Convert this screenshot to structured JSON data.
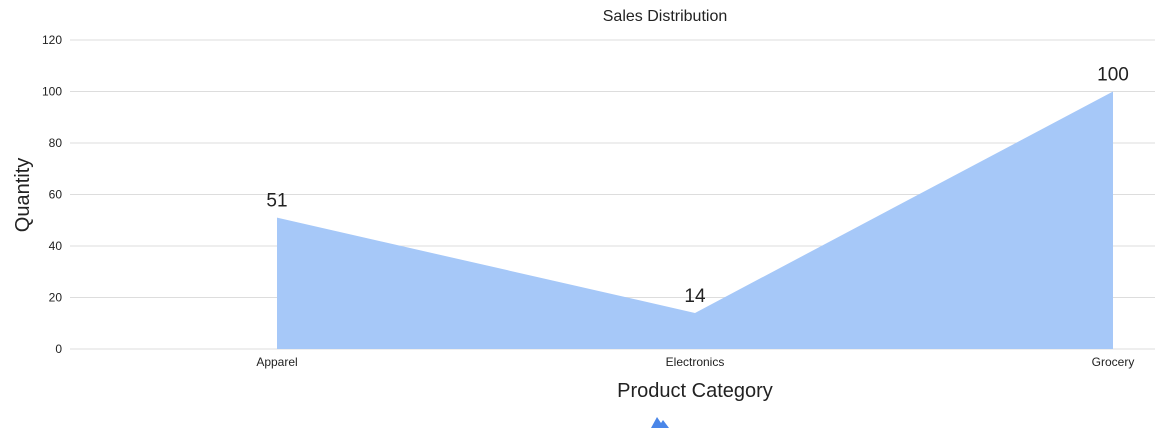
{
  "chart_data": {
    "type": "area",
    "title": "Sales Distribution",
    "xlabel": "Product Category",
    "ylabel": "Quantity",
    "categories": [
      "Apparel",
      "Electronics",
      "Grocery"
    ],
    "series": [
      {
        "values": [
          51,
          14,
          100
        ],
        "color": "#a6c8f8"
      }
    ],
    "ylim": [
      0,
      120
    ],
    "yticks": [
      0,
      20,
      40,
      60,
      80,
      100,
      120
    ],
    "grid": true,
    "data_labels": true,
    "legend_icon": "mountain-icon",
    "legend_color": "#4a86e8"
  }
}
